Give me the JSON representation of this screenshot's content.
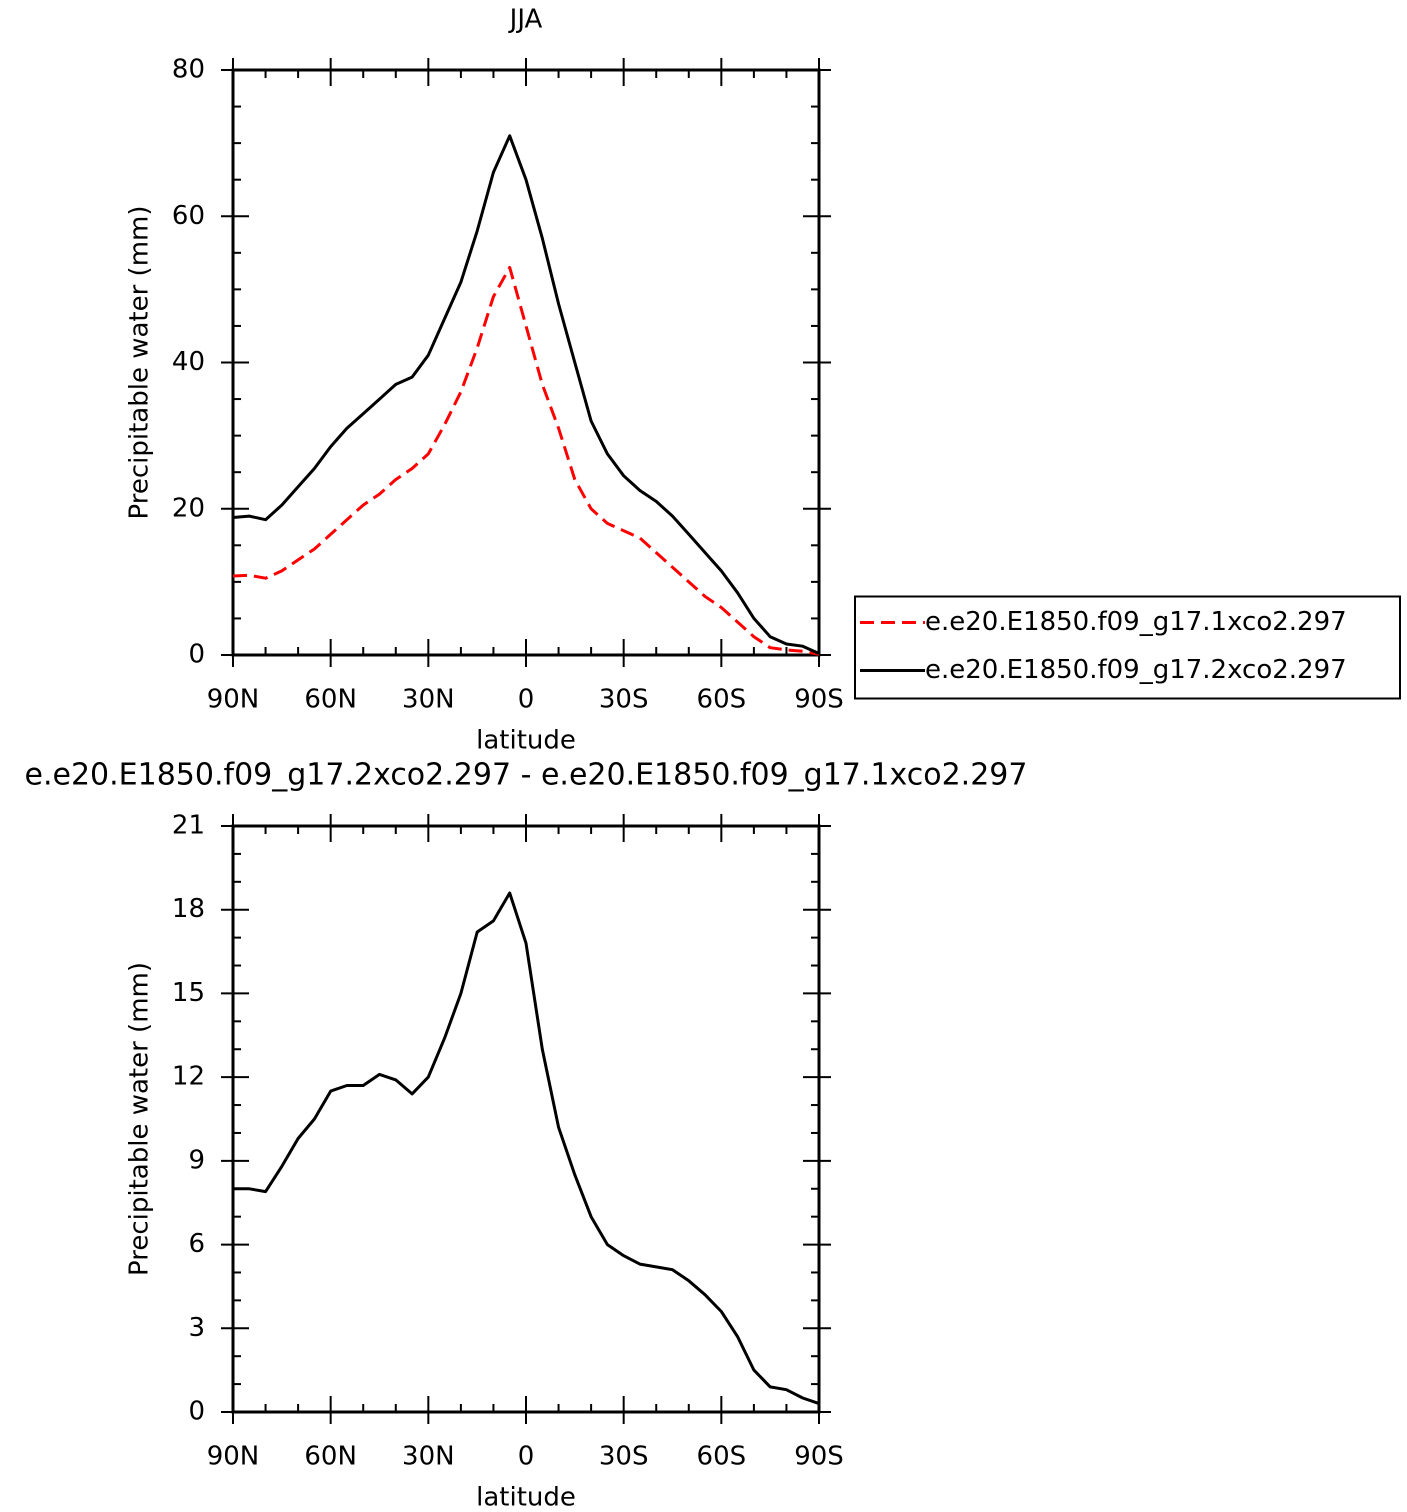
{
  "chart_data": [
    {
      "type": "line",
      "title": "JJA",
      "xlabel": "latitude",
      "ylabel": "Precipitable water (mm)",
      "x": [
        90,
        85,
        80,
        75,
        70,
        65,
        60,
        55,
        50,
        45,
        40,
        35,
        30,
        25,
        20,
        15,
        10,
        5,
        0,
        -5,
        -10,
        -15,
        -20,
        -25,
        -30,
        -35,
        -40,
        -45,
        -50,
        -55,
        -60,
        -65,
        -70,
        -75,
        -80,
        -85,
        -90
      ],
      "series": [
        {
          "name": "e.e20.E1850.f09_g17.1xco2.297",
          "color": "#ff0000",
          "dash": true,
          "values": [
            10.8,
            10.9,
            10.5,
            11.5,
            13,
            14.5,
            16.5,
            18.5,
            20.5,
            22,
            24,
            25.5,
            27.5,
            31.5,
            36,
            42,
            49,
            53,
            45,
            37,
            31,
            24,
            20,
            18,
            17,
            16,
            14,
            12,
            10,
            8,
            6.5,
            4.5,
            2.5,
            1,
            0.7,
            0.5,
            0.1
          ]
        },
        {
          "name": "e.e20.E1850.f09_g17.2xco2.297",
          "color": "#000000",
          "dash": false,
          "values": [
            18.8,
            19,
            18.5,
            20.5,
            23,
            25.5,
            28.5,
            31,
            33,
            35,
            37,
            38,
            41,
            46,
            51,
            58,
            66,
            71,
            65,
            57,
            48,
            40,
            32,
            27.5,
            24.5,
            22.5,
            21,
            19,
            16.5,
            14,
            11.5,
            8.5,
            5,
            2.5,
            1.5,
            1.2,
            0.2
          ]
        }
      ],
      "xlim": [
        90,
        -90
      ],
      "xticks": [
        {
          "value": 90,
          "label": "90N"
        },
        {
          "value": 60,
          "label": "60N"
        },
        {
          "value": 30,
          "label": "30N"
        },
        0,
        {
          "value": -30,
          "label": "30S"
        },
        {
          "value": -60,
          "label": "60S"
        },
        {
          "value": -90,
          "label": "90S"
        }
      ],
      "ylim": [
        0,
        80
      ],
      "yticks": [
        0,
        20,
        40,
        60,
        80
      ],
      "legend": "right"
    },
    {
      "type": "line",
      "title": "e.e20.E1850.f09_g17.2xco2.297 - e.e20.E1850.f09_g17.1xco2.297",
      "xlabel": "latitude",
      "ylabel": "Precipitable water (mm)",
      "x": [
        90,
        85,
        80,
        75,
        70,
        65,
        60,
        55,
        50,
        45,
        40,
        35,
        30,
        25,
        20,
        15,
        10,
        5,
        0,
        -5,
        -10,
        -15,
        -20,
        -25,
        -30,
        -35,
        -40,
        -45,
        -50,
        -55,
        -60,
        -65,
        -70,
        -75,
        -80,
        -85,
        -90
      ],
      "values": [
        8,
        8,
        7.9,
        8.8,
        9.8,
        10.5,
        11.5,
        11.7,
        11.7,
        12.1,
        11.9,
        11.4,
        12,
        13.4,
        15,
        17.2,
        17.6,
        18.6,
        16.8,
        13,
        10.2,
        8.5,
        7,
        6,
        5.6,
        5.3,
        5.2,
        5.1,
        4.7,
        4.2,
        3.6,
        2.7,
        1.5,
        0.9,
        0.8,
        0.5,
        0.3
      ],
      "color": "#000000",
      "xlim": [
        90,
        -90
      ],
      "xticks": [
        {
          "value": 90,
          "label": "90N"
        },
        {
          "value": 60,
          "label": "60N"
        },
        {
          "value": 30,
          "label": "30N"
        },
        0,
        {
          "value": -30,
          "label": "30S"
        },
        {
          "value": -60,
          "label": "60S"
        },
        {
          "value": -90,
          "label": "90S"
        }
      ],
      "ylim": [
        0,
        21
      ],
      "yticks": [
        0,
        3,
        6,
        9,
        12,
        15,
        18,
        21
      ]
    }
  ]
}
